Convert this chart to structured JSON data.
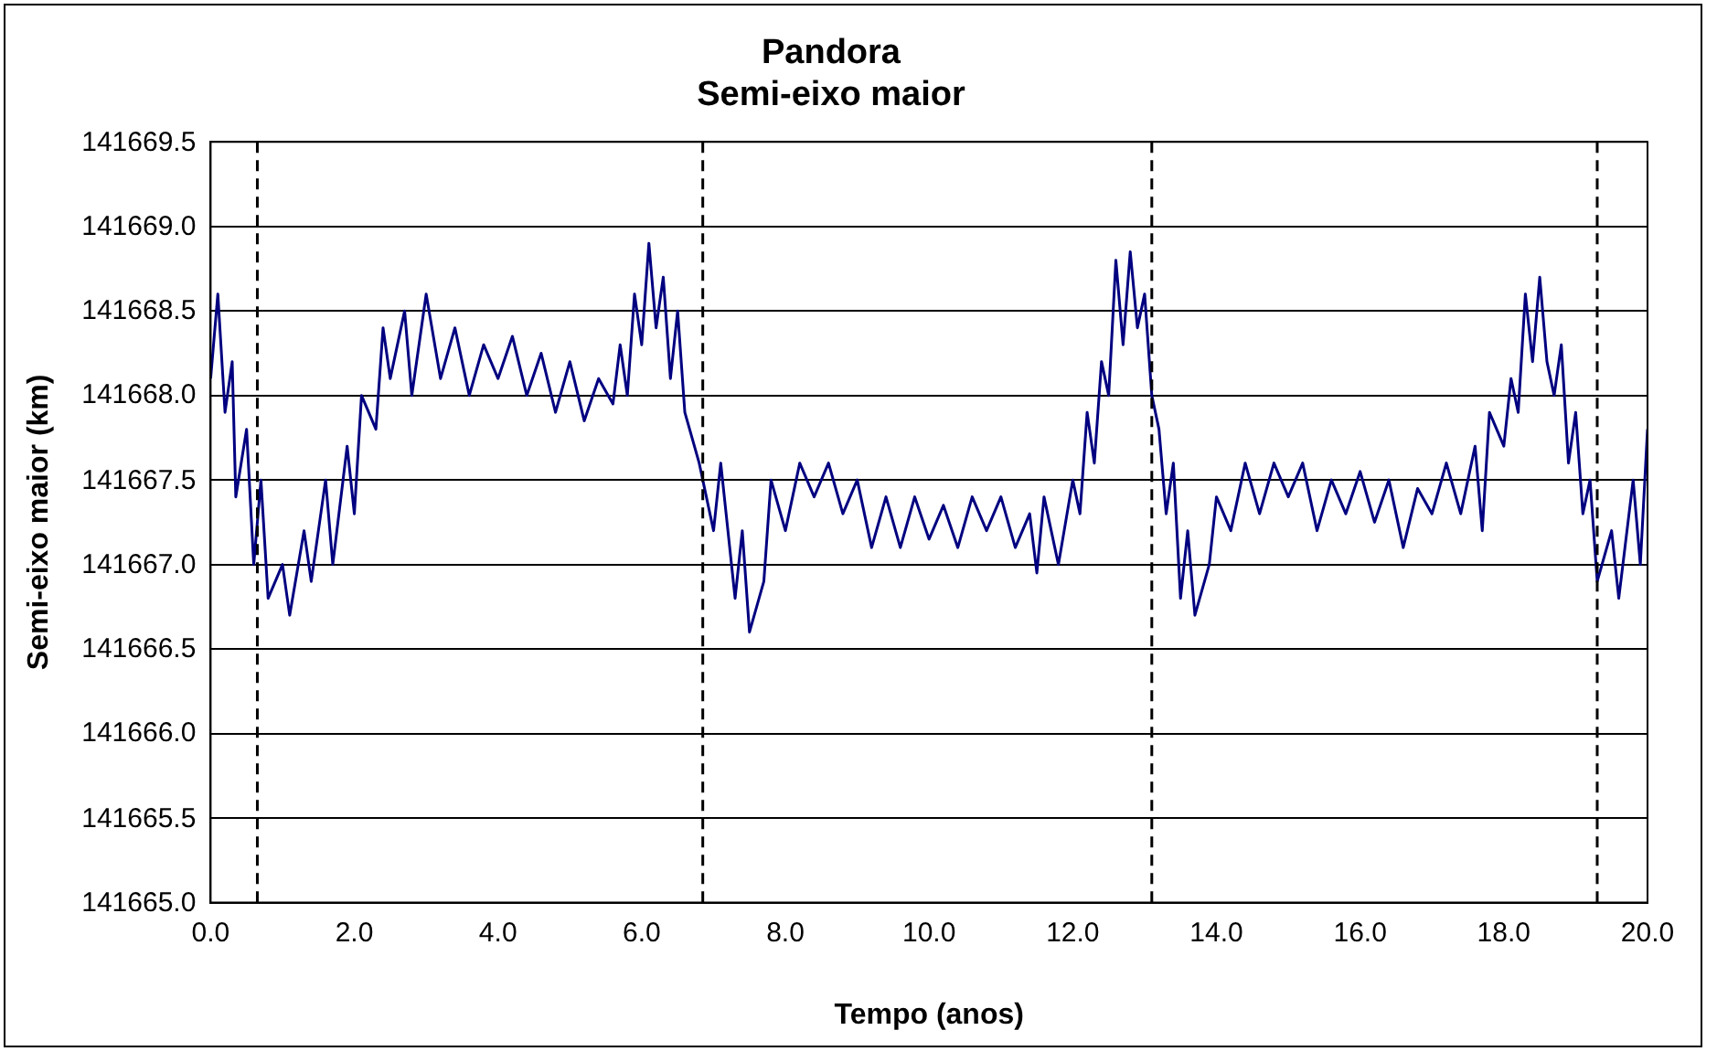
{
  "chart_data": {
    "type": "line",
    "title": [
      "Pandora",
      "Semi-eixo maior"
    ],
    "xlabel": "Tempo (anos)",
    "ylabel": "Semi-eixo maior (km)",
    "xlim": [
      0,
      20
    ],
    "xticks": [
      {
        "value": 0,
        "label": "0.0"
      },
      {
        "value": 2,
        "label": "2.0"
      },
      {
        "value": 4,
        "label": "4.0"
      },
      {
        "value": 6,
        "label": "6.0"
      },
      {
        "value": 8,
        "label": "8.0"
      },
      {
        "value": 10,
        "label": "10.0"
      },
      {
        "value": 12,
        "label": "12.0"
      },
      {
        "value": 14,
        "label": "14.0"
      },
      {
        "value": 16,
        "label": "16.0"
      },
      {
        "value": 18,
        "label": "18.0"
      },
      {
        "value": 20,
        "label": "20.0"
      }
    ],
    "ylim": [
      141665,
      141669.5
    ],
    "yticks": [
      {
        "value": 141665,
        "label": "141665.0"
      },
      {
        "value": 141665.5,
        "label": "141665.5"
      },
      {
        "value": 141666,
        "label": "141666.0"
      },
      {
        "value": 141666.5,
        "label": "141666.5"
      },
      {
        "value": 141667,
        "label": "141667.0"
      },
      {
        "value": 141667.5,
        "label": "141667.5"
      },
      {
        "value": 141668,
        "label": "141668.0"
      },
      {
        "value": 141668.5,
        "label": "141668.5"
      },
      {
        "value": 141669,
        "label": "141669.0"
      },
      {
        "value": 141669.5,
        "label": "141669.5"
      }
    ],
    "grid": "y",
    "legend": false,
    "marker": "none",
    "line_style": "solid",
    "ref_lines": [
      {
        "axis": "x",
        "value": 0.65,
        "line_style": "dashed",
        "color": "#000000"
      },
      {
        "axis": "x",
        "value": 6.85,
        "line_style": "dashed",
        "color": "#000000"
      },
      {
        "axis": "x",
        "value": 13.1,
        "line_style": "dashed",
        "color": "#000000"
      },
      {
        "axis": "x",
        "value": 19.3,
        "line_style": "dashed",
        "color": "#000000"
      }
    ],
    "x": [
      0,
      0.1,
      0.2,
      0.3,
      0.35,
      0.5,
      0.6,
      0.7,
      0.8,
      1.0,
      1.1,
      1.3,
      1.4,
      1.6,
      1.7,
      1.9,
      2.0,
      2.1,
      2.3,
      2.4,
      2.5,
      2.7,
      2.8,
      3.0,
      3.2,
      3.4,
      3.6,
      3.8,
      4.0,
      4.2,
      4.4,
      4.6,
      4.8,
      5.0,
      5.2,
      5.4,
      5.6,
      5.7,
      5.8,
      5.9,
      6.0,
      6.1,
      6.2,
      6.3,
      6.4,
      6.5,
      6.6,
      6.8,
      7.0,
      7.1,
      7.3,
      7.4,
      7.5,
      7.7,
      7.8,
      8.0,
      8.2,
      8.4,
      8.6,
      8.8,
      9.0,
      9.2,
      9.4,
      9.6,
      9.8,
      10.0,
      10.2,
      10.4,
      10.6,
      10.8,
      11.0,
      11.2,
      11.4,
      11.5,
      11.6,
      11.8,
      12.0,
      12.1,
      12.2,
      12.3,
      12.4,
      12.5,
      12.6,
      12.7,
      12.8,
      12.9,
      13.0,
      13.1,
      13.2,
      13.3,
      13.4,
      13.5,
      13.6,
      13.7,
      13.9,
      14.0,
      14.2,
      14.4,
      14.6,
      14.8,
      15.0,
      15.2,
      15.4,
      15.6,
      15.8,
      16.0,
      16.2,
      16.4,
      16.6,
      16.8,
      17.0,
      17.2,
      17.4,
      17.6,
      17.7,
      17.8,
      18.0,
      18.1,
      18.2,
      18.3,
      18.4,
      18.5,
      18.6,
      18.7,
      18.8,
      18.9,
      19.0,
      19.1,
      19.2,
      19.3,
      19.5,
      19.6,
      19.8,
      19.9,
      20.0
    ],
    "series": [
      {
        "color": "#000080",
        "values": [
          141668.1,
          141668.6,
          141667.9,
          141668.2,
          141667.4,
          141667.8,
          141667.0,
          141667.5,
          141666.8,
          141667.0,
          141666.7,
          141667.2,
          141666.9,
          141667.5,
          141667.0,
          141667.7,
          141667.3,
          141668.0,
          141667.8,
          141668.4,
          141668.1,
          141668.5,
          141668.0,
          141668.6,
          141668.1,
          141668.4,
          141668.0,
          141668.3,
          141668.1,
          141668.35,
          141668.0,
          141668.25,
          141667.9,
          141668.2,
          141667.85,
          141668.1,
          141667.95,
          141668.3,
          141668.0,
          141668.6,
          141668.3,
          141668.9,
          141668.4,
          141668.7,
          141668.1,
          141668.5,
          141667.9,
          141667.6,
          141667.2,
          141667.6,
          141666.8,
          141667.2,
          141666.6,
          141666.9,
          141667.5,
          141667.2,
          141667.6,
          141667.4,
          141667.6,
          141667.3,
          141667.5,
          141667.1,
          141667.4,
          141667.1,
          141667.4,
          141667.15,
          141667.35,
          141667.1,
          141667.4,
          141667.2,
          141667.4,
          141667.1,
          141667.3,
          141666.95,
          141667.4,
          141667.0,
          141667.5,
          141667.3,
          141667.9,
          141667.6,
          141668.2,
          141668.0,
          141668.8,
          141668.3,
          141668.85,
          141668.4,
          141668.6,
          141668.0,
          141667.8,
          141667.3,
          141667.6,
          141666.8,
          141667.2,
          141666.7,
          141667.0,
          141667.4,
          141667.2,
          141667.6,
          141667.3,
          141667.6,
          141667.4,
          141667.6,
          141667.2,
          141667.5,
          141667.3,
          141667.55,
          141667.25,
          141667.5,
          141667.1,
          141667.45,
          141667.3,
          141667.6,
          141667.3,
          141667.7,
          141667.2,
          141667.9,
          141667.7,
          141668.1,
          141667.9,
          141668.6,
          141668.2,
          141668.7,
          141668.2,
          141668.0,
          141668.3,
          141667.6,
          141667.9,
          141667.3,
          141667.5,
          141666.9,
          141667.2,
          141666.8,
          141667.5,
          141667.0,
          141667.8
        ]
      }
    ]
  }
}
